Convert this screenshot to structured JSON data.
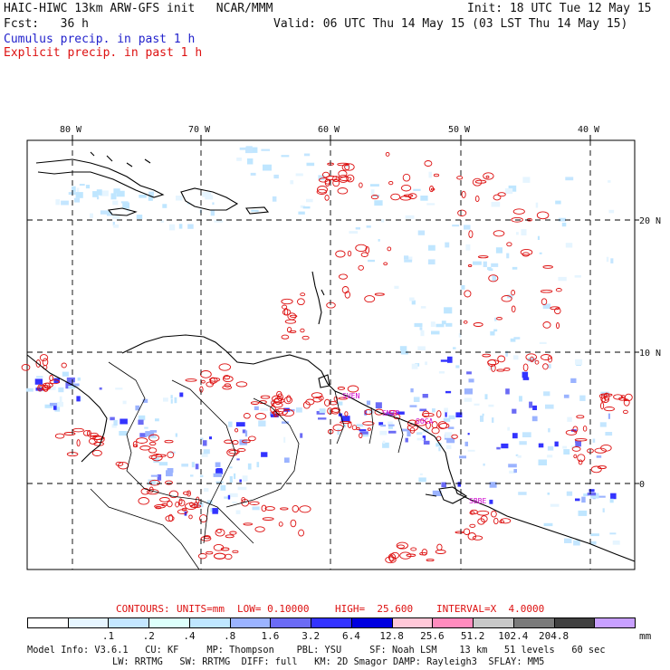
{
  "header": {
    "left_line1": "HAIC-HIWC 13km ARW-GFS init   NCAR/MMM",
    "left_line2": "Fcst:   36 h",
    "legend_cumulus": "Cumulus precip. in past 1 h",
    "legend_explicit": "Explicit precip. in past 1 h",
    "init": "Init: 18 UTC Tue 12 May 15",
    "valid": "Valid: 06 UTC Thu 14 May 15 (03 LST Thu 14 May 15)"
  },
  "map": {
    "lon_labels": [
      "80 W",
      "70 W",
      "60 W",
      "50 W",
      "40 W"
    ],
    "lat_labels": [
      "20 N",
      "10 N",
      "0"
    ],
    "stations": [
      "SVEN",
      "SMJP",
      "SOCA",
      "SBBE"
    ],
    "colors": {
      "coast": "#000000",
      "grid": "#000000",
      "explicit_contour": "#dd1111",
      "station": "#cc00cc"
    }
  },
  "contours_info": {
    "contours": "CONTOURS:",
    "units": "UNITS=mm",
    "low": "LOW= 0.10000",
    "high": "HIGH=  25.600",
    "interval": "INTERVAL=X  4.0000"
  },
  "colorbar": {
    "labels": [
      ".1",
      ".2",
      ".4",
      ".8",
      "1.6",
      "3.2",
      "6.4",
      "12.8",
      "25.6",
      "51.2",
      "102.4",
      "204.8"
    ],
    "unit": "mm",
    "colors": [
      "#ffffff",
      "#e6f5ff",
      "#c4e6ff",
      "#ddfffb",
      "#bfe6ff",
      "#9bb3ff",
      "#6b6bf5",
      "#3333ff",
      "#0000e0",
      "#ffc8d8",
      "#ff8cbe",
      "#c8c8c8",
      "#7a7a7a",
      "#404040",
      "#c8a0ff"
    ]
  },
  "model_info": {
    "line1": "Model Info: V3.6.1   CU: KF     MP: Thompson    PBL: YSU     SF: Noah LSM    13 km   51 levels   60 sec",
    "line2": "LW: RRTMG   SW: RRTMG  DIFF: full   KM: 2D Smagor DAMP: Rayleigh3  SFLAY: MM5"
  }
}
